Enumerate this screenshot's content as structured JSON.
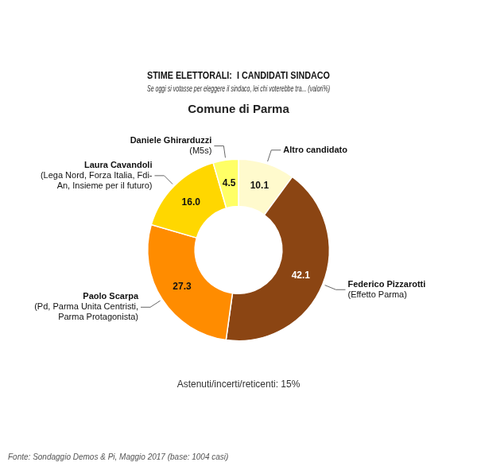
{
  "chart_data": {
    "type": "doughnut",
    "title": "STIME ELETTORALI:  I CANDIDATI SINDACO",
    "subtitle": "Se oggi si votasse per eleggere il sindaco, lei chi voterebbe tra... (valori%)",
    "categories": [
      "Altro candidato",
      "Federico Pizzarotti\n(Effetto Parma)",
      "Paolo Scarpa\n(Pd, Parma Unita Centristi,\nParma Protagonista)",
      "Laura Cavandoli\n(Lega Nord, Forza Italia, Fdi-\nAn, Insieme per il futuro)",
      "Daniele Ghirarduzzi\n(M5s)"
    ],
    "values": [
      10.1,
      42.1,
      27.3,
      16.0,
      4.5
    ],
    "value_labels": [
      "10.1",
      "42.1",
      "27.3",
      "16.0",
      "4.5"
    ],
    "colors": [
      "#FFFACD",
      "#8B4513",
      "#FF8C00",
      "#FFD700",
      "#FFFF66"
    ],
    "data_labels": true,
    "annotations": [
      "Comune di Parma",
      "Astenuti/incerti/reticenti: 15%",
      "Fonte: Sondaggio Demos & Pi, Maggio 2017 (base: 1004 casi)"
    ]
  }
}
